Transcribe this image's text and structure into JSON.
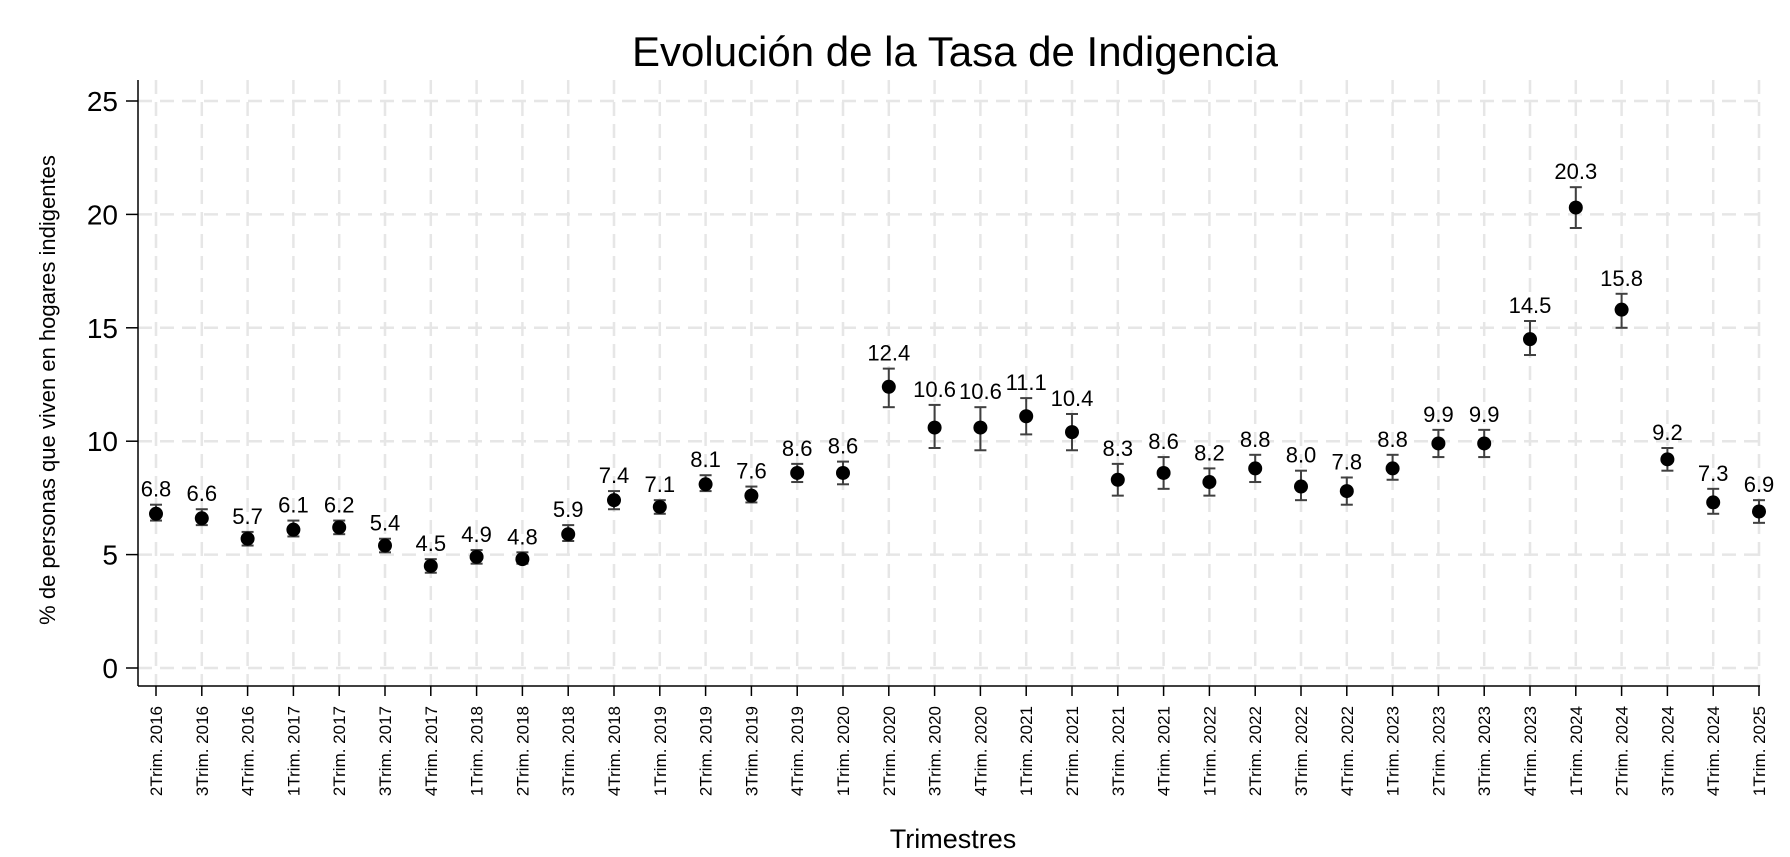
{
  "chart_data": {
    "type": "scatter",
    "title": "Evolución de la Tasa de Indigencia",
    "xlabel": "Trimestres",
    "ylabel": "% de personas que viven en hogares indigentes",
    "ylim": [
      0,
      25
    ],
    "yticks": [
      0,
      5,
      10,
      15,
      20,
      25
    ],
    "grid": true,
    "categories": [
      "2Trim. 2016",
      "3Trim. 2016",
      "4Trim. 2016",
      "1Trim. 2017",
      "2Trim. 2017",
      "3Trim. 2017",
      "4Trim. 2017",
      "1Trim. 2018",
      "2Trim. 2018",
      "3Trim. 2018",
      "4Trim. 2018",
      "1Trim. 2019",
      "2Trim. 2019",
      "3Trim. 2019",
      "4Trim. 2019",
      "1Trim. 2020",
      "2Trim. 2020",
      "3Trim. 2020",
      "4Trim. 2020",
      "1Trim. 2021",
      "2Trim. 2021",
      "3Trim. 2021",
      "4Trim. 2021",
      "1Trim. 2022",
      "2Trim. 2022",
      "3Trim. 2022",
      "4Trim. 2022",
      "1Trim. 2023",
      "2Trim. 2023",
      "3Trim. 2023",
      "4Trim. 2023",
      "1Trim. 2024",
      "2Trim. 2024",
      "3Trim. 2024",
      "4Trim. 2024",
      "1Trim. 2025"
    ],
    "values": [
      6.8,
      6.6,
      5.7,
      6.1,
      6.2,
      5.4,
      4.5,
      4.9,
      4.8,
      5.9,
      7.4,
      7.1,
      8.1,
      7.6,
      8.6,
      8.6,
      12.4,
      10.6,
      10.6,
      11.1,
      10.4,
      8.3,
      8.6,
      8.2,
      8.8,
      8.0,
      7.8,
      8.8,
      9.9,
      9.9,
      14.5,
      20.3,
      15.8,
      9.2,
      7.3,
      6.9
    ],
    "labels": [
      "6.8",
      "6.6",
      "5.7",
      "6.1",
      "6.2",
      "5.4",
      "4.5",
      "4.9",
      "4.8",
      "5.9",
      "7.4",
      "7.1",
      "8.1",
      "7.6",
      "8.6",
      "8.6",
      "12.4",
      "10.6",
      "10.6",
      "11.1",
      "10.4",
      "8.3",
      "8.6",
      "8.2",
      "8.8",
      "8.0",
      "7.8",
      "8.8",
      "9.9",
      "9.9",
      "14.5",
      "20.3",
      "15.8",
      "9.2",
      "7.3",
      "6.9"
    ],
    "ci_low": [
      6.5,
      6.3,
      5.4,
      5.8,
      5.9,
      5.1,
      4.2,
      4.6,
      4.6,
      5.6,
      7.0,
      6.8,
      7.8,
      7.3,
      8.2,
      8.1,
      11.5,
      9.7,
      9.6,
      10.3,
      9.6,
      7.6,
      7.9,
      7.6,
      8.2,
      7.4,
      7.2,
      8.3,
      9.3,
      9.3,
      13.8,
      19.4,
      15.0,
      8.7,
      6.8,
      6.4
    ],
    "ci_high": [
      7.2,
      7.0,
      6.0,
      6.5,
      6.5,
      5.7,
      4.8,
      5.2,
      5.1,
      6.3,
      7.8,
      7.4,
      8.5,
      8.0,
      9.0,
      9.1,
      13.2,
      11.6,
      11.5,
      11.9,
      11.2,
      9.0,
      9.3,
      8.8,
      9.4,
      8.7,
      8.4,
      9.4,
      10.5,
      10.5,
      15.3,
      21.2,
      16.5,
      9.7,
      7.9,
      7.4
    ]
  }
}
